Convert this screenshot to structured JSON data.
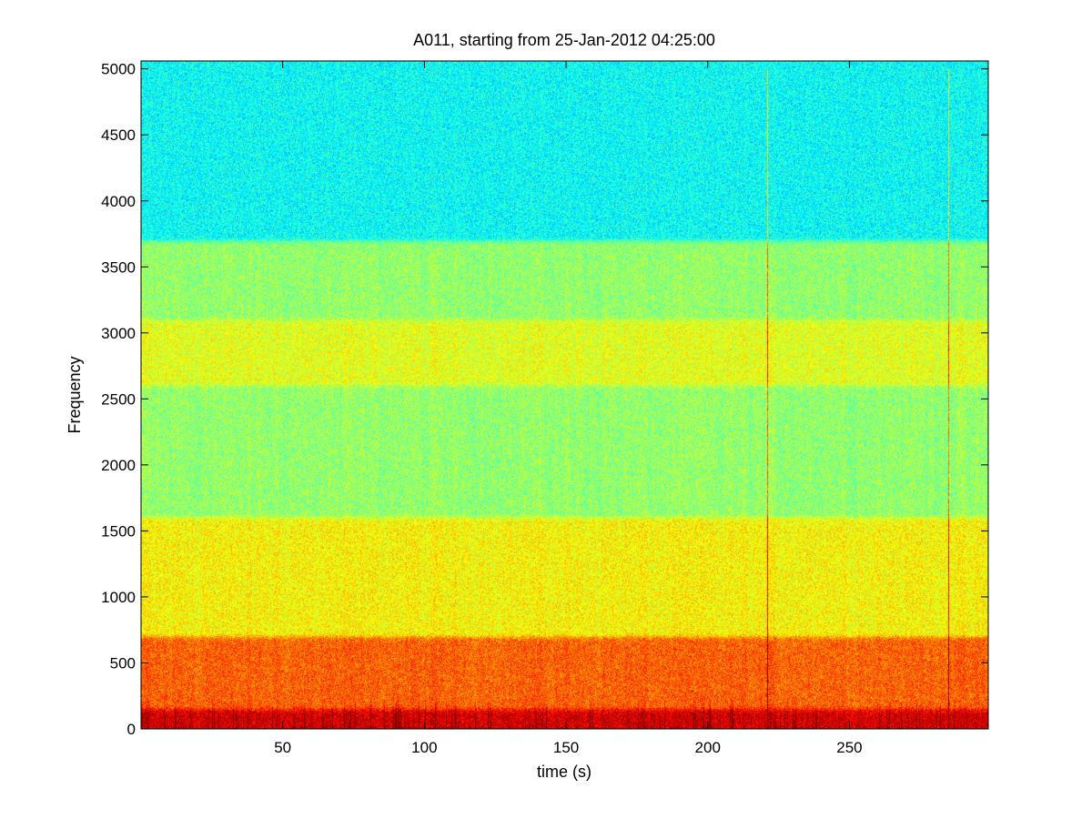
{
  "chart_data": {
    "type": "heatmap",
    "title": "A011, starting from 25-Jan-2012 04:25:00",
    "xlabel": "time (s)",
    "ylabel": "Frequency",
    "xlim": [
      0,
      299
    ],
    "ylim": [
      0,
      5060
    ],
    "x_ticks": [
      50,
      100,
      150,
      200,
      250
    ],
    "y_ticks": [
      0,
      500,
      1000,
      1500,
      2000,
      2500,
      3000,
      3500,
      4000,
      4500,
      5000
    ],
    "colormap": "jet",
    "grid": false,
    "bands": [
      {
        "freq_range": [
          0,
          150
        ],
        "level": 0.92,
        "description_color": "#e02000"
      },
      {
        "freq_range": [
          150,
          700
        ],
        "level": 0.78,
        "description_color": "#ff9a00"
      },
      {
        "freq_range": [
          700,
          1600
        ],
        "level": 0.63,
        "description_color": "#f0f000"
      },
      {
        "freq_range": [
          1600,
          2600
        ],
        "level": 0.52,
        "description_color": "#80ff60"
      },
      {
        "freq_range": [
          2600,
          3100
        ],
        "level": 0.6,
        "description_color": "#e8f000"
      },
      {
        "freq_range": [
          3100,
          3700
        ],
        "level": 0.52,
        "description_color": "#80ff60"
      },
      {
        "freq_range": [
          3700,
          5060
        ],
        "level": 0.38,
        "description_color": "#20f0e0"
      }
    ],
    "vertical_lines_at_s": [
      221,
      285
    ],
    "colors": {
      "background": "#ffffff",
      "axes": "#000000"
    }
  }
}
